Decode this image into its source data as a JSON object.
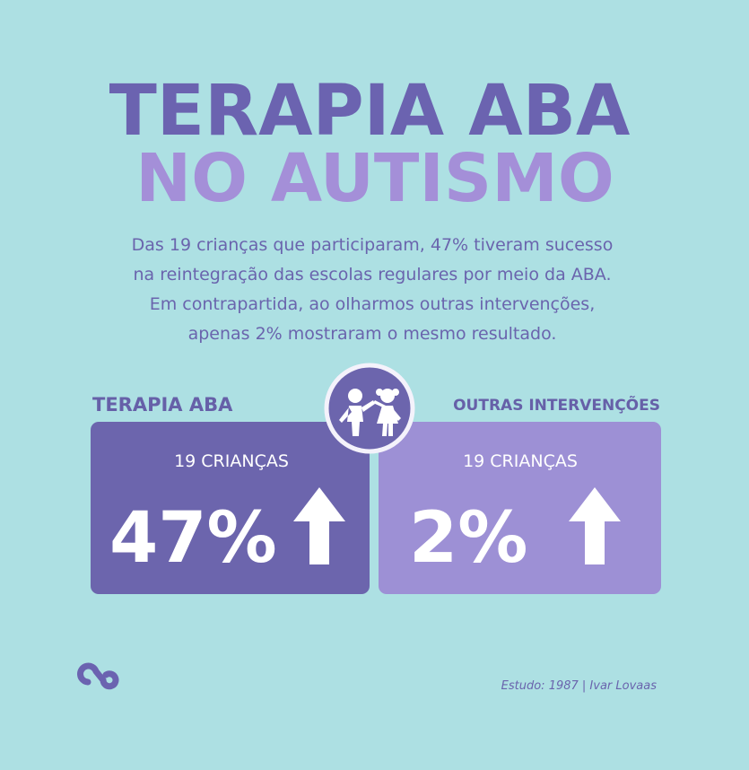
{
  "header": {
    "title_line1": "TERAPIA ABA",
    "title_line2": "NO AUTISMO"
  },
  "intro": {
    "lines": [
      "Das 19 crianças que participaram, 47% tiveram sucesso",
      "na reintegração das escolas regulares por meio da ABA.",
      "Em contrapartida, ao olharmos outras intervenções,",
      "apenas 2% mostraram o mesmo resultado."
    ]
  },
  "cards": [
    {
      "label": "TERAPIA ABA",
      "count": "19 CRIANÇAS",
      "percent": "47%"
    },
    {
      "label": "OUTRAS INTERVENÇÕES",
      "count": "19 CRIANÇAS",
      "percent": "2%"
    }
  ],
  "footer": {
    "source": "Estudo: 1987 |  Ivar Lovaas"
  }
}
